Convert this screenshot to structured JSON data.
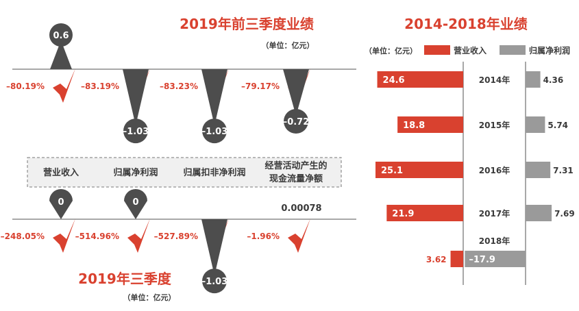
{
  "left": {
    "top_title": "2019年前三季度业绩",
    "top_unit": "（单位：亿元）",
    "bottom_title": "2019年三季度",
    "bottom_unit": "（单位：亿元）",
    "metric_labels": [
      [
        "营业收入"
      ],
      [
        "归属净利润"
      ],
      [
        "归属扣非净利润"
      ],
      [
        "经营活动产生的",
        "现金流量净额"
      ]
    ]
  },
  "right": {
    "title": "2014-2018年业绩",
    "unit": "（单位：亿元）",
    "legend_revenue": "营业收入",
    "legend_profit": "归属净利润"
  },
  "colors": {
    "red": "#d9412f",
    "gray": "#9a9a9a",
    "dark": "#4d4d4d",
    "line": "#8c8c8c"
  },
  "chart_data": [
    {
      "type": "bar",
      "title": "2019年前三季度业绩",
      "unit": "亿元",
      "categories": [
        "营业收入",
        "归属净利润",
        "归属扣非净利润",
        "经营活动产生的现金流量净额"
      ],
      "values": [
        0.6,
        -1.03,
        -1.03,
        -0.72
      ],
      "value_labels": [
        "0.6",
        "-1.03",
        "-1.03",
        "-0.72"
      ],
      "yoy_change_labels": [
        "-80.19%",
        "-83.19%",
        "-83.23%",
        "-79.17%"
      ]
    },
    {
      "type": "bar",
      "title": "2019年三季度",
      "unit": "亿元",
      "categories": [
        "营业收入",
        "归属净利润",
        "归属扣非净利润",
        "经营活动产生的现金流量净额"
      ],
      "values": [
        0,
        0,
        -1.03,
        0.00078
      ],
      "value_labels": [
        "0",
        "0",
        "-1.03",
        "0.00078"
      ],
      "yoy_change_labels": [
        "-248.05%",
        "-514.96%",
        "-527.89%",
        "-1.96%"
      ]
    },
    {
      "type": "bar",
      "title": "2014-2018年业绩",
      "unit": "亿元",
      "categories": [
        "2014年",
        "2015年",
        "2016年",
        "2017年",
        "2018年"
      ],
      "series": [
        {
          "name": "营业收入",
          "values": [
            24.6,
            18.8,
            25.1,
            21.9,
            3.62
          ]
        },
        {
          "name": "归属净利润",
          "values": [
            4.36,
            5.74,
            7.31,
            7.69,
            -17.9
          ]
        }
      ]
    }
  ]
}
